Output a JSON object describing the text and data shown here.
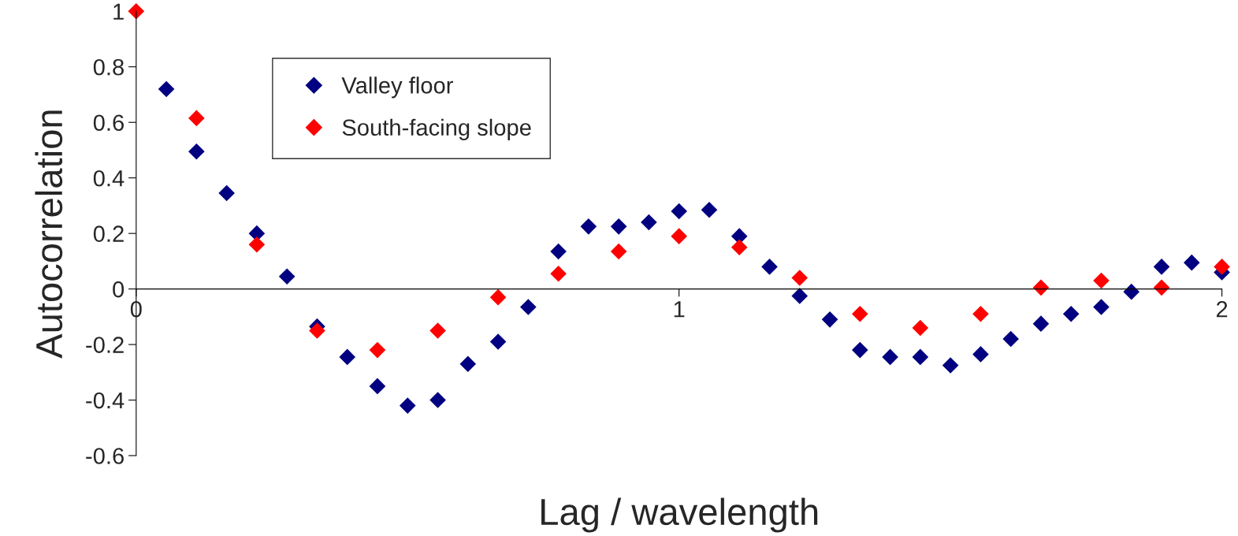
{
  "chart_data": {
    "type": "scatter",
    "xlabel": "Lag / wavelength",
    "ylabel": "Autocorrelation",
    "xlim": [
      0,
      2
    ],
    "xticks": [
      0,
      1,
      2
    ],
    "ylim": [
      -0.6,
      1
    ],
    "yticks": [
      -0.6,
      -0.4,
      -0.2,
      0,
      0.2,
      0.4,
      0.6,
      0.8,
      1
    ],
    "marker": "diamond",
    "grid": false,
    "legend": "top left",
    "series": [
      {
        "name": "Valley floor",
        "color": "#000080",
        "x": [
          0.0556,
          0.1111,
          0.1667,
          0.2222,
          0.2778,
          0.3333,
          0.3889,
          0.4444,
          0.5,
          0.5556,
          0.6111,
          0.6667,
          0.7222,
          0.7778,
          0.8333,
          0.8889,
          0.9444,
          1.0,
          1.0556,
          1.1111,
          1.1667,
          1.2222,
          1.2778,
          1.3333,
          1.3889,
          1.4444,
          1.5,
          1.5556,
          1.6111,
          1.6667,
          1.7222,
          1.7778,
          1.8333,
          1.8889,
          1.9444,
          2.0
        ],
        "values": [
          0.72,
          0.495,
          0.345,
          0.2,
          0.045,
          -0.135,
          -0.245,
          -0.35,
          -0.42,
          -0.4,
          -0.27,
          -0.19,
          -0.065,
          0.135,
          0.225,
          0.225,
          0.24,
          0.28,
          0.285,
          0.19,
          0.08,
          -0.025,
          -0.11,
          -0.22,
          -0.245,
          -0.245,
          -0.275,
          -0.235,
          -0.18,
          -0.125,
          -0.09,
          -0.065,
          -0.01,
          0.08,
          0.095,
          0.06
        ]
      },
      {
        "name": "South-facing slope",
        "color": "#ff0000",
        "x": [
          0,
          0.1111,
          0.2222,
          0.3333,
          0.4444,
          0.5556,
          0.6667,
          0.7778,
          0.8889,
          1.0,
          1.1111,
          1.2222,
          1.3333,
          1.4444,
          1.5556,
          1.6667,
          1.7778,
          1.8889,
          2.0
        ],
        "values": [
          1,
          0.615,
          0.16,
          -0.15,
          -0.22,
          -0.15,
          -0.03,
          0.055,
          0.135,
          0.19,
          0.15,
          0.04,
          -0.09,
          -0.14,
          -0.09,
          0.005,
          0.03,
          0.005,
          0.08
        ]
      }
    ]
  }
}
